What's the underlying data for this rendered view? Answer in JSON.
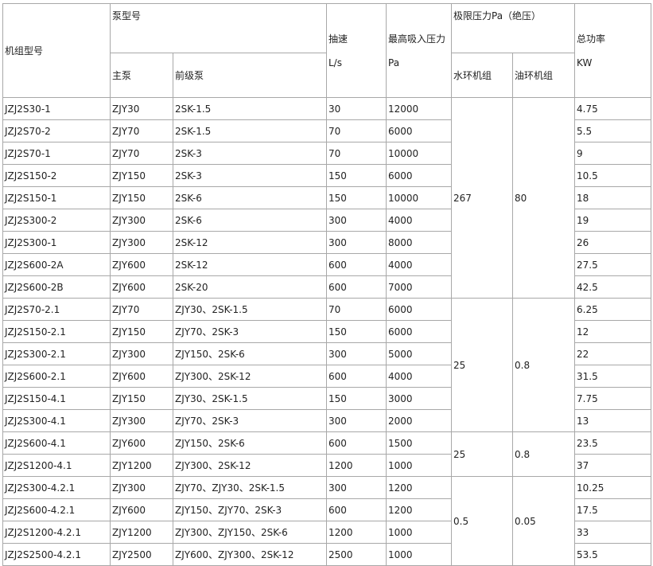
{
  "header": {
    "unit_model": "机组型号",
    "pump_model": "泵型号",
    "main_pump": "主泵",
    "backing_pump": "前级泵",
    "speed": "抽速",
    "speed_unit": "L/s",
    "max_inlet": "最高吸入压力",
    "max_inlet_unit": "Pa",
    "ultimate": "极限压力Pa（绝压）",
    "water_ring": "水环机组",
    "oil_ring": "油环机组",
    "power": "总功率",
    "power_unit": "KW"
  },
  "rows": [
    [
      "JZJ2S30-1",
      "ZJY30",
      "2SK-1.5",
      "30",
      "12000",
      "4.75"
    ],
    [
      "JZJ2S70-2",
      "ZJY70",
      "2SK-1.5",
      "70",
      "6000",
      "5.5"
    ],
    [
      "JZJ2S70-1",
      "ZJY70",
      "2SK-3",
      "70",
      "10000",
      "9"
    ],
    [
      "JZJ2S150-2",
      "ZJY150",
      "2SK-3",
      "150",
      "6000",
      "10.5"
    ],
    [
      "JZJ2S150-1",
      "ZJY150",
      "2SK-6",
      "150",
      "10000",
      "18"
    ],
    [
      "JZJ2S300-2",
      "ZJY300",
      "2SK-6",
      "300",
      "4000",
      "19"
    ],
    [
      "JZJ2S300-1",
      "ZJY300",
      "2SK-12",
      "300",
      "8000",
      "26"
    ],
    [
      "JZJ2S600-2A",
      "ZJY600",
      "2SK-12",
      "600",
      "4000",
      "27.5"
    ],
    [
      "JZJ2S600-2B",
      "ZJY600",
      "2SK-20",
      "600",
      "7000",
      "42.5"
    ],
    [
      "JZJ2S70-2.1",
      "ZJY70",
      "ZJY30、2SK-1.5",
      "70",
      "6000",
      "6.25"
    ],
    [
      "JZJ2S150-2.1",
      "ZJY150",
      "ZJY70、2SK-3",
      "150",
      "6000",
      "12"
    ],
    [
      "JZJ2S300-2.1",
      "ZJY300",
      "ZJY150、2SK-6",
      "300",
      "5000",
      "22"
    ],
    [
      "JZJ2S600-2.1",
      "ZJY600",
      "ZJY300、2SK-12",
      "600",
      "4000",
      "31.5"
    ],
    [
      "JZJ2S150-4.1",
      "ZJY150",
      "ZJY30、2SK-1.5",
      "150",
      "3000",
      "7.75"
    ],
    [
      "JZJ2S300-4.1",
      "ZJY300",
      "ZJY70、2SK-3",
      "300",
      "2000",
      "13"
    ],
    [
      "JZJ2S600-4.1",
      "ZJY600",
      "ZJY150、2SK-6",
      "600",
      "1500",
      "23.5"
    ],
    [
      "JZJ2S1200-4.1",
      "ZJY1200",
      "ZJY300、2SK-12",
      "1200",
      "1000",
      "37"
    ],
    [
      "JZJ2S300-4.2.1",
      "ZJY300",
      "ZJY70、ZJY30、2SK-1.5",
      "300",
      "1200",
      "10.25"
    ],
    [
      "JZJ2S600-4.2.1",
      "ZJY600",
      "ZJY150、ZJY70、2SK-3",
      "600",
      "1200",
      "17.5"
    ],
    [
      "JZJ2S1200-4.2.1",
      "ZJY1200",
      "ZJY300、ZJY150、2SK-6",
      "1200",
      "1000",
      "33"
    ],
    [
      "JZJ2S2500-4.2.1",
      "ZJY2500",
      "ZJY600、ZJY300、2SK-12",
      "2500",
      "1000",
      "53.5"
    ]
  ],
  "groups": [
    {
      "start": 0,
      "span": 9,
      "water": "267",
      "oil": "80"
    },
    {
      "start": 9,
      "span": 6,
      "water": "25",
      "oil": "0.8"
    },
    {
      "start": 15,
      "span": 2,
      "water": "25",
      "oil": "0.8"
    },
    {
      "start": 17,
      "span": 4,
      "water": "0.5",
      "oil": "0.05"
    }
  ]
}
